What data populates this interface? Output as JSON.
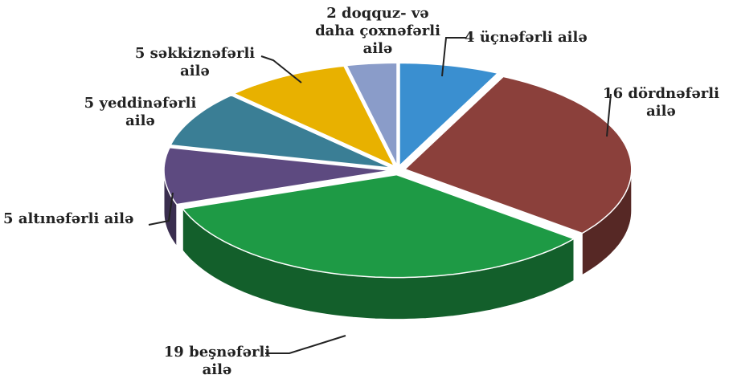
{
  "chart_data": {
    "type": "pie3d",
    "categories": [
      "üçnəfərli ailə",
      "dördnəfərli ailə",
      "beşnəfərli ailə",
      "altınəfərli ailə",
      "yeddinəfərli ailə",
      "səkkiznəfərli ailə",
      "doqquz- və daha çoxnəfərli ailə"
    ],
    "values": [
      4,
      16,
      19,
      5,
      5,
      5,
      2
    ],
    "colors": [
      "#3a8fd0",
      "#8b403b",
      "#1e9a45",
      "#5d4a80",
      "#3a7e95",
      "#e8b100",
      "#8a9cc9"
    ]
  }
}
